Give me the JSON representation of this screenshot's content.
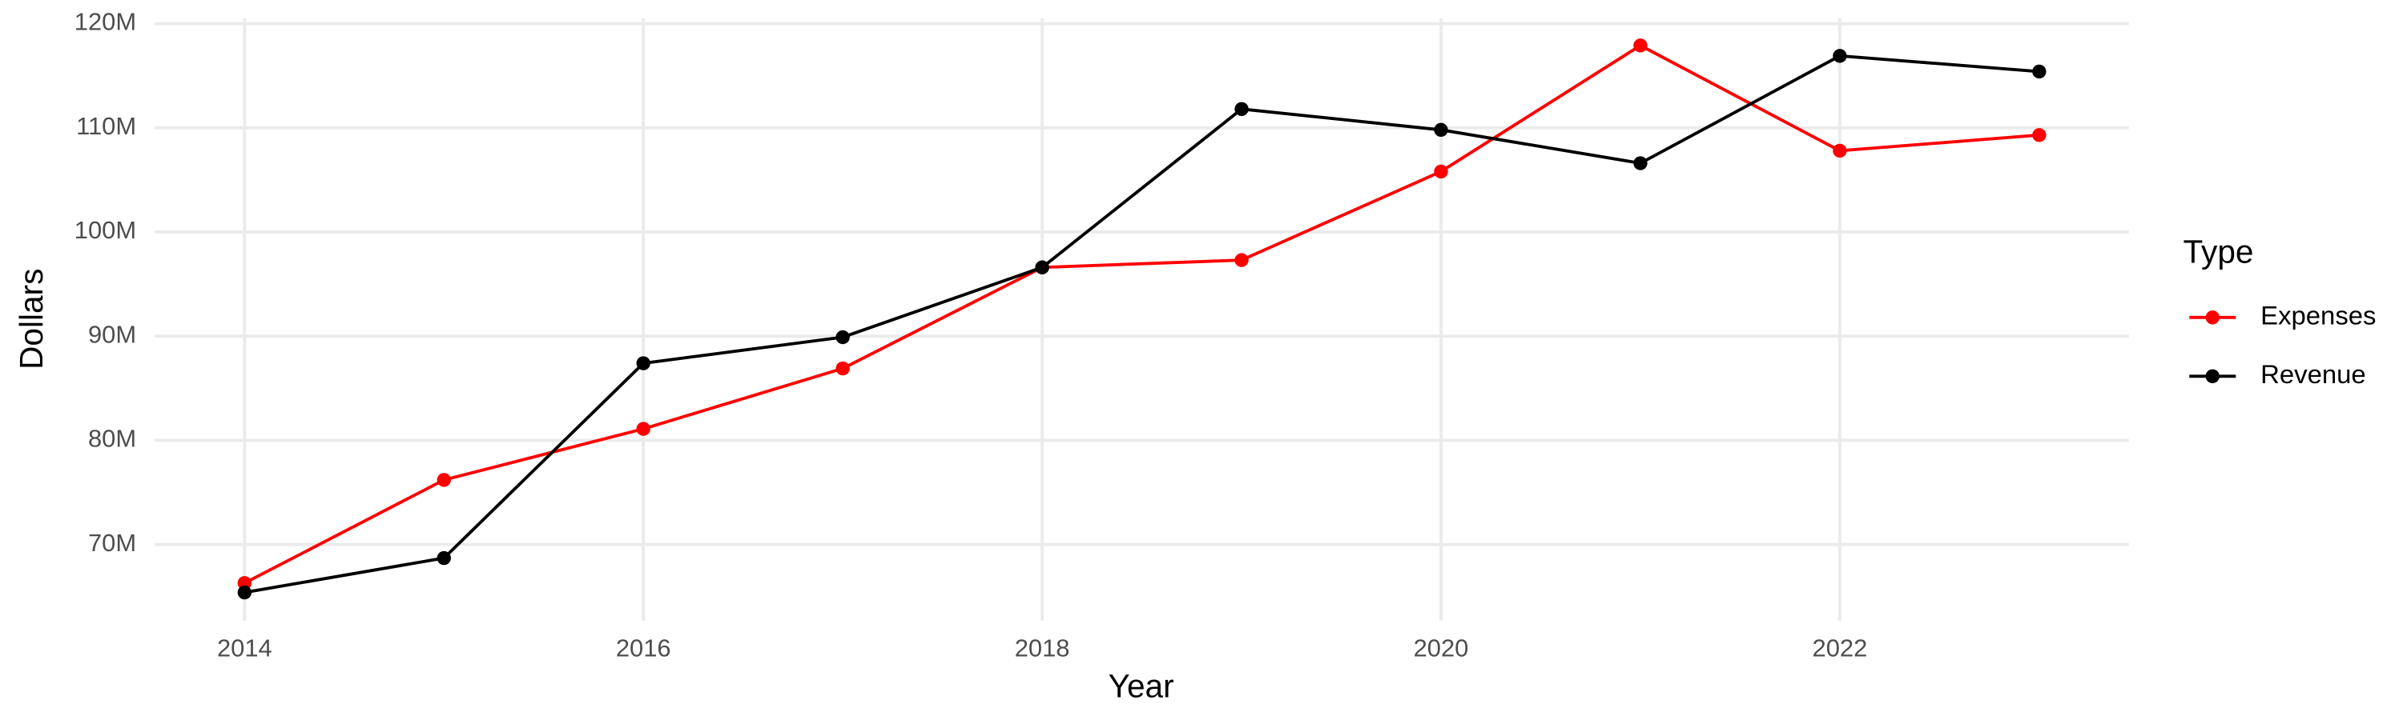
{
  "chart_data": {
    "type": "line",
    "x_label": "Year",
    "y_label": "Dollars",
    "legend_title": "Type",
    "x": [
      2014,
      2015,
      2016,
      2017,
      2018,
      2019,
      2020,
      2021,
      2022,
      2023
    ],
    "series": [
      {
        "name": "Expenses",
        "color": "#ff0000",
        "values": [
          66300000,
          76200000,
          81100000,
          86900000,
          96600000,
          97300000,
          105800000,
          117900000,
          107800000,
          109300000
        ]
      },
      {
        "name": "Revenue",
        "color": "#000000",
        "values": [
          65400000,
          68700000,
          87400000,
          89900000,
          96600000,
          111800000,
          109800000,
          106600000,
          116900000,
          115400000
        ]
      }
    ],
    "xlim": [
      2013.55,
      2023.45
    ],
    "xticks": [
      2014,
      2016,
      2018,
      2020,
      2022
    ],
    "ylim": [
      62700000,
      120500000
    ],
    "yticks": [
      {
        "value": 70000000,
        "label": "70M"
      },
      {
        "value": 80000000,
        "label": "80M"
      },
      {
        "value": 90000000,
        "label": "90M"
      },
      {
        "value": 100000000,
        "label": "100M"
      },
      {
        "value": 110000000,
        "label": "110M"
      },
      {
        "value": 120000000,
        "label": "120M"
      }
    ],
    "grid": true,
    "legend_position": "right"
  }
}
